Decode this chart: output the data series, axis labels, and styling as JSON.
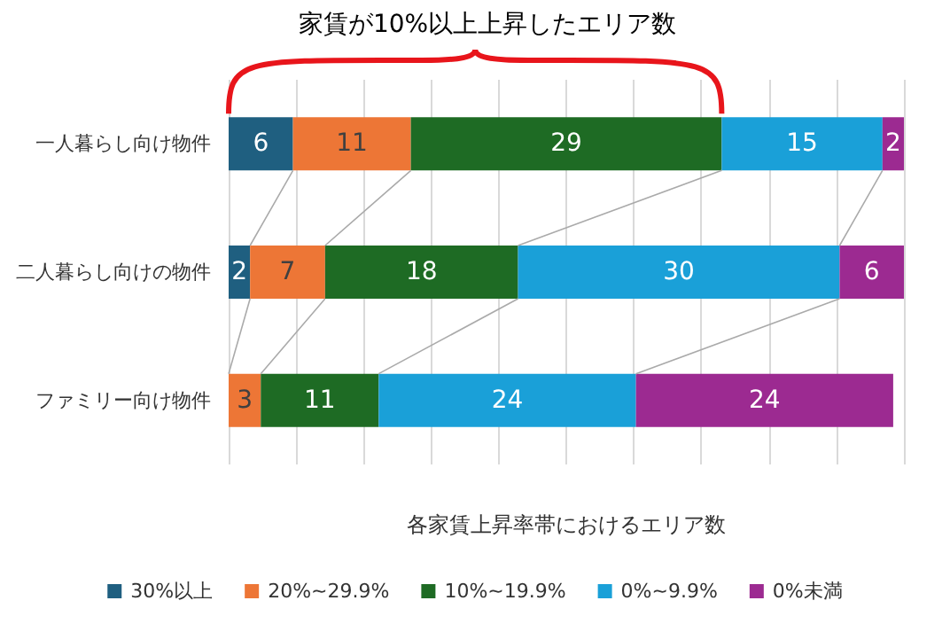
{
  "chart_data": {
    "type": "bar",
    "orientation": "horizontal",
    "stacked": true,
    "title": "家賃が10%以上上昇したエリア数",
    "xlabel": "各家賃上昇率帯におけるエリア数",
    "categories": [
      "一人暮らし向け物件",
      "二人暮らし向けの物件",
      "ファミリー向け物件"
    ],
    "series": [
      {
        "name": "30%以上",
        "color": "#1f5f80",
        "values": [
          6,
          2,
          null
        ]
      },
      {
        "name": "20%~29.9%",
        "color": "#ed7636",
        "values": [
          11,
          7,
          3
        ]
      },
      {
        "name": "10%~19.9%",
        "color": "#1e6b24",
        "values": [
          29,
          18,
          11
        ]
      },
      {
        "name": "0%~9.9%",
        "color": "#1aa0d8",
        "values": [
          15,
          30,
          24
        ]
      },
      {
        "name": "0%未満",
        "color": "#9c2a91",
        "values": [
          2,
          6,
          24
        ]
      }
    ],
    "xlim": [
      0,
      63
    ],
    "xticks": [
      {
        "value": 0,
        "label": null
      },
      {
        "value": 6.3,
        "label": null
      },
      {
        "value": 12.6,
        "label": null
      },
      {
        "value": 18.9,
        "label": null
      },
      {
        "value": 25.2,
        "label": null
      },
      {
        "value": 31.5,
        "label": null
      },
      {
        "value": 37.8,
        "label": null
      },
      {
        "value": 44.1,
        "label": null
      },
      {
        "value": 50.4,
        "label": null
      },
      {
        "value": 56.7,
        "label": null
      },
      {
        "value": 63,
        "label": null
      }
    ],
    "grid": "x",
    "tick_labels": "y",
    "legend": "bottom",
    "data_labels": true
  }
}
